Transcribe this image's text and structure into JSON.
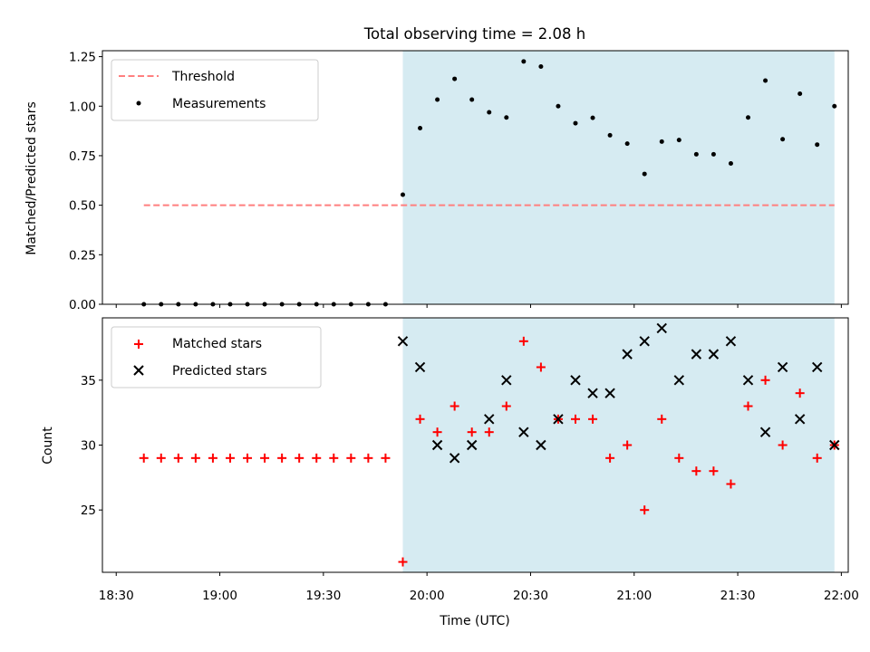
{
  "title": "Total observing time = 2.08 h",
  "colors": {
    "shade": "#add8e6",
    "threshold": "#ff7f7f",
    "measurement": "#000000",
    "matched": "#ff0000",
    "predicted": "#000000"
  },
  "chart_data": [
    {
      "type": "scatter",
      "ylabel": "Matched/Predicted stars",
      "xlabel": "",
      "ylim": [
        0,
        1.28
      ],
      "yticks": [
        "0.00",
        "0.25",
        "0.50",
        "0.75",
        "1.00",
        "1.25"
      ],
      "x_range": [
        "18:26",
        "22:02"
      ],
      "grid": false,
      "legend_position": "top-left",
      "shaded_interval": [
        "19:53",
        "21:58"
      ],
      "threshold": {
        "name": "Threshold",
        "value": 0.5,
        "x_range": [
          "18:38",
          "21:58"
        ]
      },
      "series": [
        {
          "name": "Measurements",
          "x": [
            "18:38",
            "18:43",
            "18:48",
            "18:53",
            "18:58",
            "19:03",
            "19:08",
            "19:13",
            "19:18",
            "19:23",
            "19:28",
            "19:33",
            "19:38",
            "19:43",
            "19:48",
            "19:53",
            "19:58",
            "20:03",
            "20:08",
            "20:13",
            "20:18",
            "20:23",
            "20:28",
            "20:33",
            "20:38",
            "20:43",
            "20:48",
            "20:53",
            "20:58",
            "21:03",
            "21:08",
            "21:13",
            "21:18",
            "21:23",
            "21:28",
            "21:33",
            "21:38",
            "21:43",
            "21:48",
            "21:53",
            "21:58"
          ],
          "y": [
            0,
            0,
            0,
            0,
            0,
            0,
            0,
            0,
            0,
            0,
            0,
            0,
            0,
            0,
            0,
            0.553,
            0.889,
            1.033,
            1.138,
            1.033,
            0.969,
            0.943,
            1.226,
            1.2,
            1.0,
            0.914,
            0.941,
            0.853,
            0.811,
            0.658,
            0.821,
            0.829,
            0.757,
            0.757,
            0.711,
            0.943,
            1.129,
            0.833,
            1.063,
            0.806,
            1.0
          ]
        }
      ]
    },
    {
      "type": "scatter",
      "ylabel": "Count",
      "xlabel": "Time (UTC)",
      "ylim": [
        20.2,
        39.8
      ],
      "yticks": [
        "25",
        "30",
        "35"
      ],
      "xticks": [
        "18:30",
        "19:00",
        "19:30",
        "20:00",
        "20:30",
        "21:00",
        "21:30",
        "22:00"
      ],
      "x_range": [
        "18:26",
        "22:02"
      ],
      "grid": false,
      "legend_position": "top-left",
      "shaded_interval": [
        "19:53",
        "21:58"
      ],
      "series": [
        {
          "name": "Matched stars",
          "marker": "+",
          "x": [
            "18:38",
            "18:43",
            "18:48",
            "18:53",
            "18:58",
            "19:03",
            "19:08",
            "19:13",
            "19:18",
            "19:23",
            "19:28",
            "19:33",
            "19:38",
            "19:43",
            "19:48",
            "19:53",
            "19:58",
            "20:03",
            "20:08",
            "20:13",
            "20:18",
            "20:23",
            "20:28",
            "20:33",
            "20:38",
            "20:43",
            "20:48",
            "20:53",
            "20:58",
            "21:03",
            "21:08",
            "21:13",
            "21:18",
            "21:23",
            "21:28",
            "21:33",
            "21:38",
            "21:43",
            "21:48",
            "21:53",
            "21:58"
          ],
          "y": [
            29,
            29,
            29,
            29,
            29,
            29,
            29,
            29,
            29,
            29,
            29,
            29,
            29,
            29,
            29,
            21,
            32,
            31,
            33,
            31,
            31,
            33,
            38,
            36,
            32,
            32,
            32,
            29,
            30,
            25,
            32,
            29,
            28,
            28,
            27,
            33,
            35,
            30,
            34,
            29,
            30
          ]
        },
        {
          "name": "Predicted stars",
          "marker": "x",
          "x": [
            "19:53",
            "19:58",
            "20:03",
            "20:08",
            "20:13",
            "20:18",
            "20:23",
            "20:28",
            "20:33",
            "20:38",
            "20:43",
            "20:48",
            "20:53",
            "20:58",
            "21:03",
            "21:08",
            "21:13",
            "21:18",
            "21:23",
            "21:28",
            "21:33",
            "21:38",
            "21:43",
            "21:48",
            "21:53",
            "21:58"
          ],
          "y": [
            38,
            36,
            30,
            29,
            30,
            32,
            35,
            31,
            30,
            32,
            35,
            34,
            34,
            37,
            38,
            39,
            35,
            37,
            37,
            38,
            35,
            31,
            36,
            32,
            36,
            30
          ]
        }
      ]
    }
  ]
}
